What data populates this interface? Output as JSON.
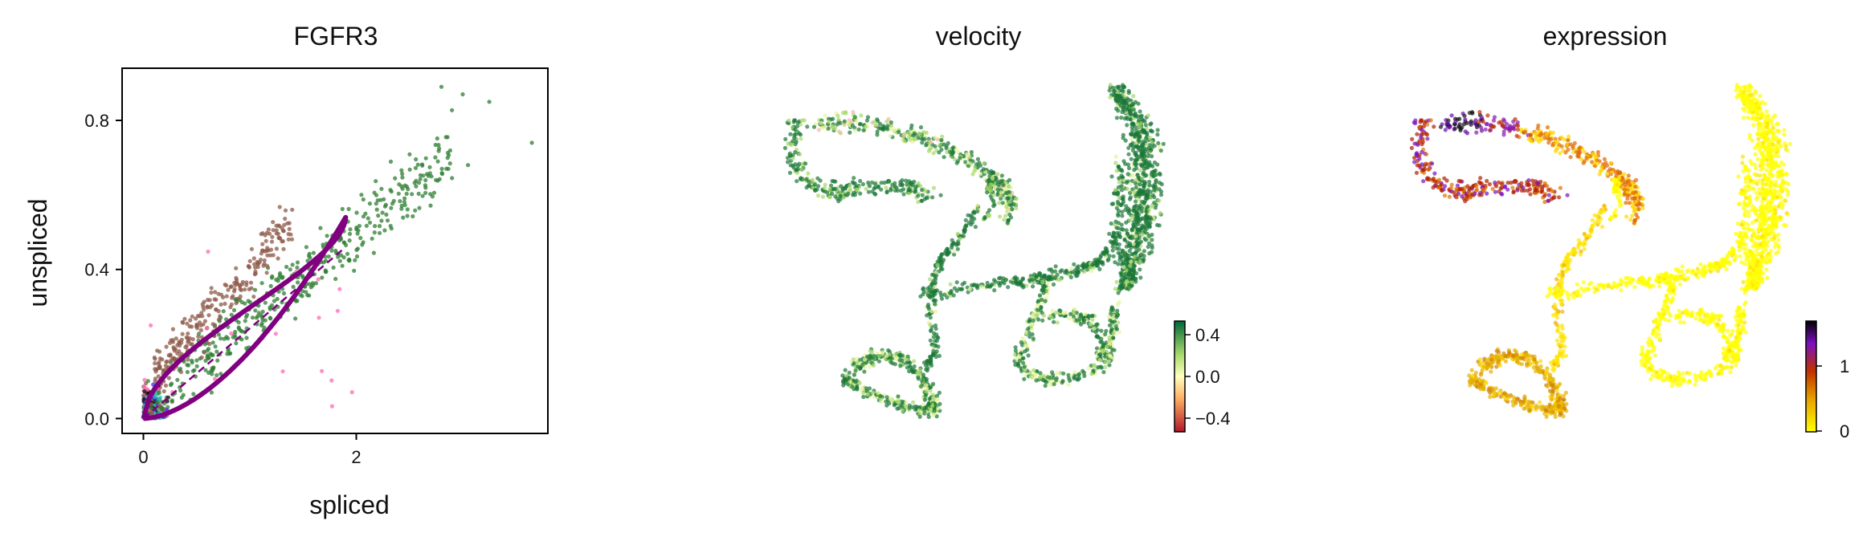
{
  "chart_data": [
    {
      "type": "scatter",
      "title": "FGFR3",
      "xlabel": "spliced",
      "ylabel": "unspliced",
      "xlim": [
        -0.2,
        3.8
      ],
      "ylim": [
        -0.04,
        0.94
      ],
      "x_ticks": [
        "0",
        "2"
      ],
      "y_ticks": [
        "0.0",
        "0.4",
        "0.8"
      ],
      "grid": false,
      "colors": {
        "dark_green": "#2e7d32",
        "brown": "#8d5a4a",
        "pink": "#ff69b4",
        "blue": "#3030ff",
        "cyan": "#20c0c0",
        "black": "#111111",
        "fit_line": "#800080"
      },
      "overlays": [
        {
          "kind": "loop",
          "description": "fitted dynamics curve",
          "apex": [
            1.9,
            0.54
          ]
        },
        {
          "kind": "dashed_line",
          "from": [
            0,
            0
          ],
          "to": [
            1.9,
            0.46
          ]
        }
      ]
    },
    {
      "type": "scatter",
      "title": "velocity",
      "colorbar": {
        "ticks": [
          "0.4",
          "0.0",
          "−0.4"
        ],
        "range": [
          -0.45,
          0.45
        ],
        "cmap": [
          "#b2182b",
          "#fee08b",
          "#d9ef8b",
          "#1a9850",
          "#006837"
        ]
      }
    },
    {
      "type": "scatter",
      "title": "expression",
      "colorbar": {
        "ticks": [
          "1",
          "0"
        ],
        "range": [
          0,
          1.7
        ],
        "cmap": [
          "#ffff00",
          "#e6a000",
          "#c03000",
          "#7a10c0",
          "#000000"
        ]
      }
    }
  ]
}
